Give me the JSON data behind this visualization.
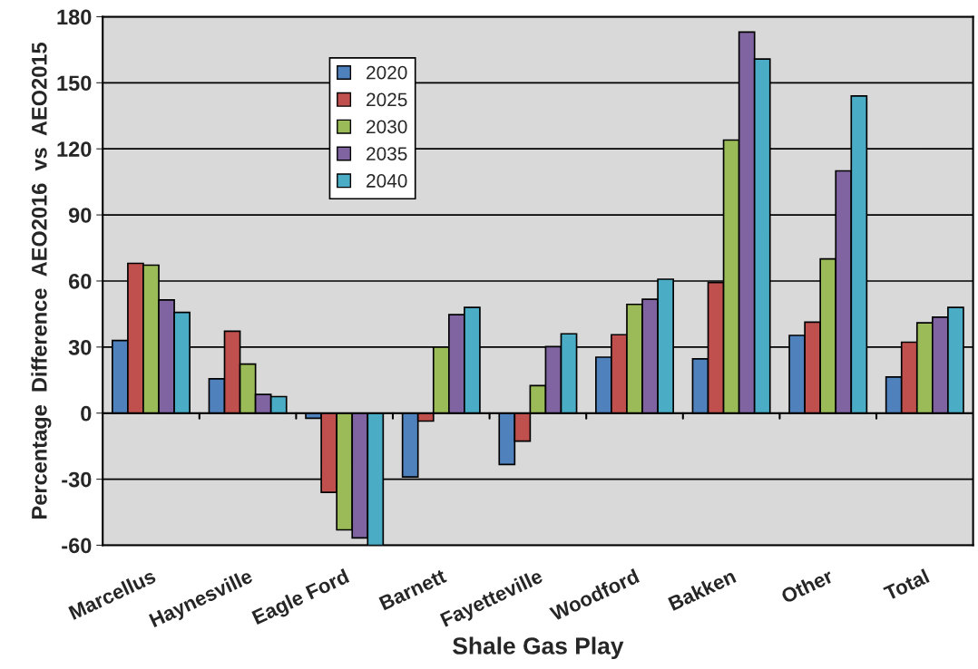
{
  "chart_data": {
    "type": "bar",
    "xlabel": "Shale Gas Play",
    "ylabel": "Percentage  Difference  AEO2016  vs  AEO2015",
    "categories": [
      "Marcellus",
      "Haynesville",
      "Eagle Ford",
      "Barnett",
      "Fayetteville",
      "Woodford",
      "Bakken",
      "Other",
      "Total"
    ],
    "series": [
      {
        "name": "2020",
        "color": "#4f81bd",
        "values": [
          33,
          15.6,
          -2.3,
          -29,
          -23.3,
          25.4,
          24.6,
          35.3,
          16.4
        ]
      },
      {
        "name": "2025",
        "color": "#c0504d",
        "values": [
          68,
          37.2,
          -36,
          -3.6,
          -12.7,
          35.6,
          59.3,
          41.3,
          32.2
        ]
      },
      {
        "name": "2030",
        "color": "#9bbb59",
        "values": [
          67.2,
          22.3,
          -53,
          30,
          12.5,
          49.4,
          124,
          70,
          41
        ]
      },
      {
        "name": "2035",
        "color": "#8064a2",
        "values": [
          51.4,
          8.5,
          -56.7,
          44.7,
          30.2,
          51.7,
          173,
          110,
          43.6
        ]
      },
      {
        "name": "2040",
        "color": "#4bacc6",
        "values": [
          45.7,
          7.5,
          -60,
          48,
          36,
          60.8,
          160.8,
          144,
          48
        ]
      }
    ],
    "ylim": [
      -60,
      180
    ],
    "yticks": [
      -60,
      -30,
      0,
      30,
      60,
      90,
      120,
      150,
      180
    ],
    "grid": "y",
    "legend": "top left"
  }
}
